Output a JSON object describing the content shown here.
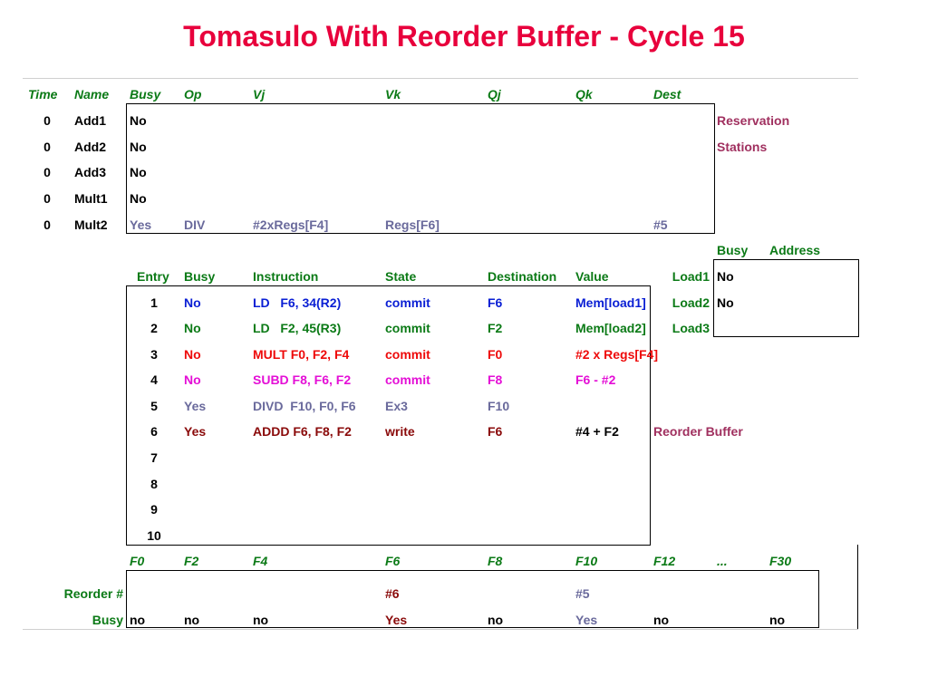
{
  "title": "Tomasulo With Reorder Buffer - Cycle 15",
  "colors": {
    "title": "#e8003c",
    "header": "#0b7a16",
    "label": "#a0305f",
    "entry1": "#0a1fd4",
    "entry2": "#0b7a16",
    "entry3": "#ee0a0a",
    "entry4": "#e40fd6",
    "entry5": "#6a6a9c",
    "entry6": "#8a0a0a"
  },
  "rs": {
    "headers": [
      "Time",
      "Name",
      "Busy",
      "Op",
      "Vj",
      "Vk",
      "Qj",
      "Qk",
      "Dest"
    ],
    "rows": [
      {
        "time": "0",
        "name": "Add1",
        "busy": "No",
        "op": "",
        "vj": "",
        "vk": "",
        "qj": "",
        "qk": "",
        "dest": ""
      },
      {
        "time": "0",
        "name": "Add2",
        "busy": "No",
        "op": "",
        "vj": "",
        "vk": "",
        "qj": "",
        "qk": "",
        "dest": ""
      },
      {
        "time": "0",
        "name": "Add3",
        "busy": "No",
        "op": "",
        "vj": "",
        "vk": "",
        "qj": "",
        "qk": "",
        "dest": ""
      },
      {
        "time": "0",
        "name": "Mult1",
        "busy": "No",
        "op": "",
        "vj": "",
        "vk": "",
        "qj": "",
        "qk": "",
        "dest": ""
      },
      {
        "time": "0",
        "name": "Mult2",
        "busy": "Yes",
        "op": "DIV",
        "vj": "#2xRegs[F4]",
        "vk": "Regs[F6]",
        "qj": "",
        "qk": "",
        "dest": "#5"
      }
    ],
    "label_line1": "Reservation",
    "label_line2": "Stations"
  },
  "load": {
    "headers": [
      "Busy",
      "Address"
    ],
    "rows": [
      {
        "name": "Load1",
        "busy": "No",
        "address": ""
      },
      {
        "name": "Load2",
        "busy": "No",
        "address": ""
      },
      {
        "name": "Load3",
        "busy": "",
        "address": ""
      }
    ]
  },
  "rob": {
    "headers": [
      "Entry",
      "Busy",
      "Instruction",
      "State",
      "Destination",
      "Value"
    ],
    "rows": [
      {
        "entry": "1",
        "busy": "No",
        "instruction": "LD   F6, 34(R2)",
        "state": "commit",
        "destination": "F6",
        "value": "Mem[load1]"
      },
      {
        "entry": "2",
        "busy": "No",
        "instruction": "LD   F2, 45(R3)",
        "state": "commit",
        "destination": "F2",
        "value": "Mem[load2]"
      },
      {
        "entry": "3",
        "busy": "No",
        "instruction": "MULT F0, F2, F4",
        "state": "commit",
        "destination": "F0",
        "value": "#2 x Regs[F4]"
      },
      {
        "entry": "4",
        "busy": "No",
        "instruction": "SUBD F8, F6, F2",
        "state": "commit",
        "destination": "F8",
        "value": "F6 - #2"
      },
      {
        "entry": "5",
        "busy": "Yes",
        "instruction": "DIVD  F10, F0, F6",
        "state": "Ex3",
        "destination": "F10",
        "value": ""
      },
      {
        "entry": "6",
        "busy": "Yes",
        "instruction": "ADDD F6, F8, F2",
        "state": "write",
        "destination": "F6",
        "value": "#4 + F2"
      },
      {
        "entry": "7",
        "busy": "",
        "instruction": "",
        "state": "",
        "destination": "",
        "value": ""
      },
      {
        "entry": "8",
        "busy": "",
        "instruction": "",
        "state": "",
        "destination": "",
        "value": ""
      },
      {
        "entry": "9",
        "busy": "",
        "instruction": "",
        "state": "",
        "destination": "",
        "value": ""
      },
      {
        "entry": "10",
        "busy": "",
        "instruction": "",
        "state": "",
        "destination": "",
        "value": ""
      }
    ],
    "label": "Reorder Buffer"
  },
  "regs": {
    "names": [
      "F0",
      "F2",
      "F4",
      "F6",
      "F8",
      "F10",
      "F12",
      "...",
      "F30"
    ],
    "reorder_label": "Reorder #",
    "busy_label": "Busy",
    "reorder": [
      "",
      "",
      "",
      "#6",
      "",
      "#5",
      "",
      "",
      ""
    ],
    "busy": [
      "no",
      "no",
      "no",
      "Yes",
      "no",
      "Yes",
      "no",
      "",
      "no"
    ]
  }
}
